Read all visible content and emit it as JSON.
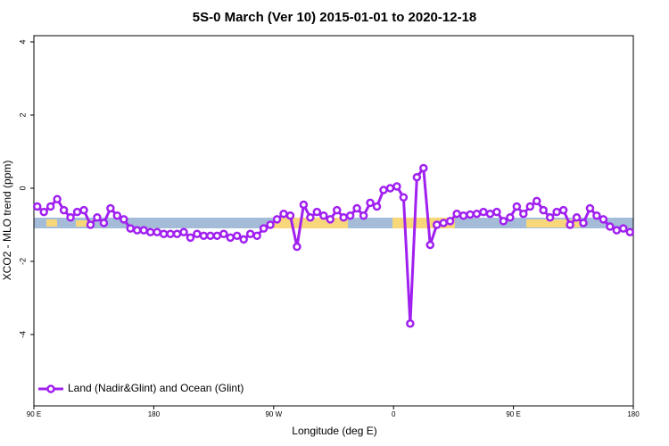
{
  "chart_data": {
    "type": "line",
    "title": "5S-0 March (Ver 10)   2015-01-01 to 2020-12-18",
    "x_label": "Longitude (deg E)",
    "y_label": "XCO2 - MLO trend (ppm)",
    "xlim": [
      90,
      540
    ],
    "ylim": [
      -5.95,
      4.17
    ],
    "xticks": [
      {
        "value": 90,
        "label": "90 E"
      },
      {
        "value": 180,
        "label": "180"
      },
      {
        "value": 270,
        "label": "90 W"
      },
      {
        "value": 360,
        "label": "0"
      },
      {
        "value": 450,
        "label": "90 E"
      },
      {
        "value": 540,
        "label": "180"
      }
    ],
    "yticks": [
      -4,
      -2,
      0,
      2,
      4
    ],
    "legend": "bottom-left",
    "x": [
      92.5,
      97.5,
      102.5,
      107.5,
      112.5,
      117.5,
      122.5,
      127.5,
      132.5,
      137.5,
      142.5,
      147.5,
      152.5,
      157.5,
      162.5,
      167.5,
      172.5,
      177.5,
      182.5,
      187.5,
      192.5,
      197.5,
      202.5,
      207.5,
      212.5,
      217.5,
      222.5,
      227.5,
      232.5,
      237.5,
      242.5,
      247.5,
      252.5,
      257.5,
      262.5,
      267.5,
      272.5,
      277.5,
      282.5,
      287.5,
      292.5,
      297.5,
      302.5,
      307.5,
      312.5,
      317.5,
      322.5,
      327.5,
      332.5,
      337.5,
      342.5,
      347.5,
      352.5,
      357.5,
      362.5,
      367.5,
      372.5,
      377.5,
      382.5,
      387.5,
      392.5,
      397.5,
      402.5,
      407.5,
      412.5,
      417.5,
      422.5,
      427.5,
      432.5,
      437.5,
      442.5,
      447.5,
      452.5,
      457.5,
      462.5,
      467.5,
      472.5,
      477.5,
      482.5,
      487.5,
      492.5,
      497.5,
      502.5,
      507.5,
      512.5,
      517.5,
      522.5,
      527.5,
      532.5,
      537.5
    ],
    "series": [
      {
        "name": "Land (Nadir&Glint) and Ocean (Glint)",
        "color": "#a020f0",
        "values": [
          -0.5,
          -0.65,
          -0.5,
          -0.3,
          -0.6,
          -0.8,
          -0.65,
          -0.6,
          -1.0,
          -0.8,
          -0.95,
          -0.55,
          -0.75,
          -0.85,
          -1.1,
          -1.15,
          -1.15,
          -1.2,
          -1.2,
          -1.25,
          -1.25,
          -1.25,
          -1.2,
          -1.35,
          -1.25,
          -1.3,
          -1.3,
          -1.3,
          -1.25,
          -1.35,
          -1.3,
          -1.4,
          -1.25,
          -1.3,
          -1.1,
          -1.0,
          -0.85,
          -0.7,
          -0.75,
          -1.6,
          -0.45,
          -0.8,
          -0.65,
          -0.75,
          -0.85,
          -0.6,
          -0.8,
          -0.75,
          -0.55,
          -0.75,
          -0.4,
          -0.5,
          -0.05,
          0.0,
          0.05,
          -0.25,
          -3.7,
          0.3,
          0.55,
          -1.55,
          -1.0,
          -0.95,
          -0.9,
          -0.7,
          -0.75,
          -0.72,
          -0.7,
          -0.65,
          -0.7,
          -0.65,
          -0.9,
          -0.8,
          -0.5,
          -0.7,
          -0.5,
          -0.35,
          -0.6,
          -0.8,
          -0.65,
          -0.6,
          -1.0,
          -0.8,
          -0.95,
          -0.55,
          -0.75,
          -0.85,
          -1.05,
          -1.15,
          -1.1,
          -1.2
        ]
      }
    ]
  }
}
